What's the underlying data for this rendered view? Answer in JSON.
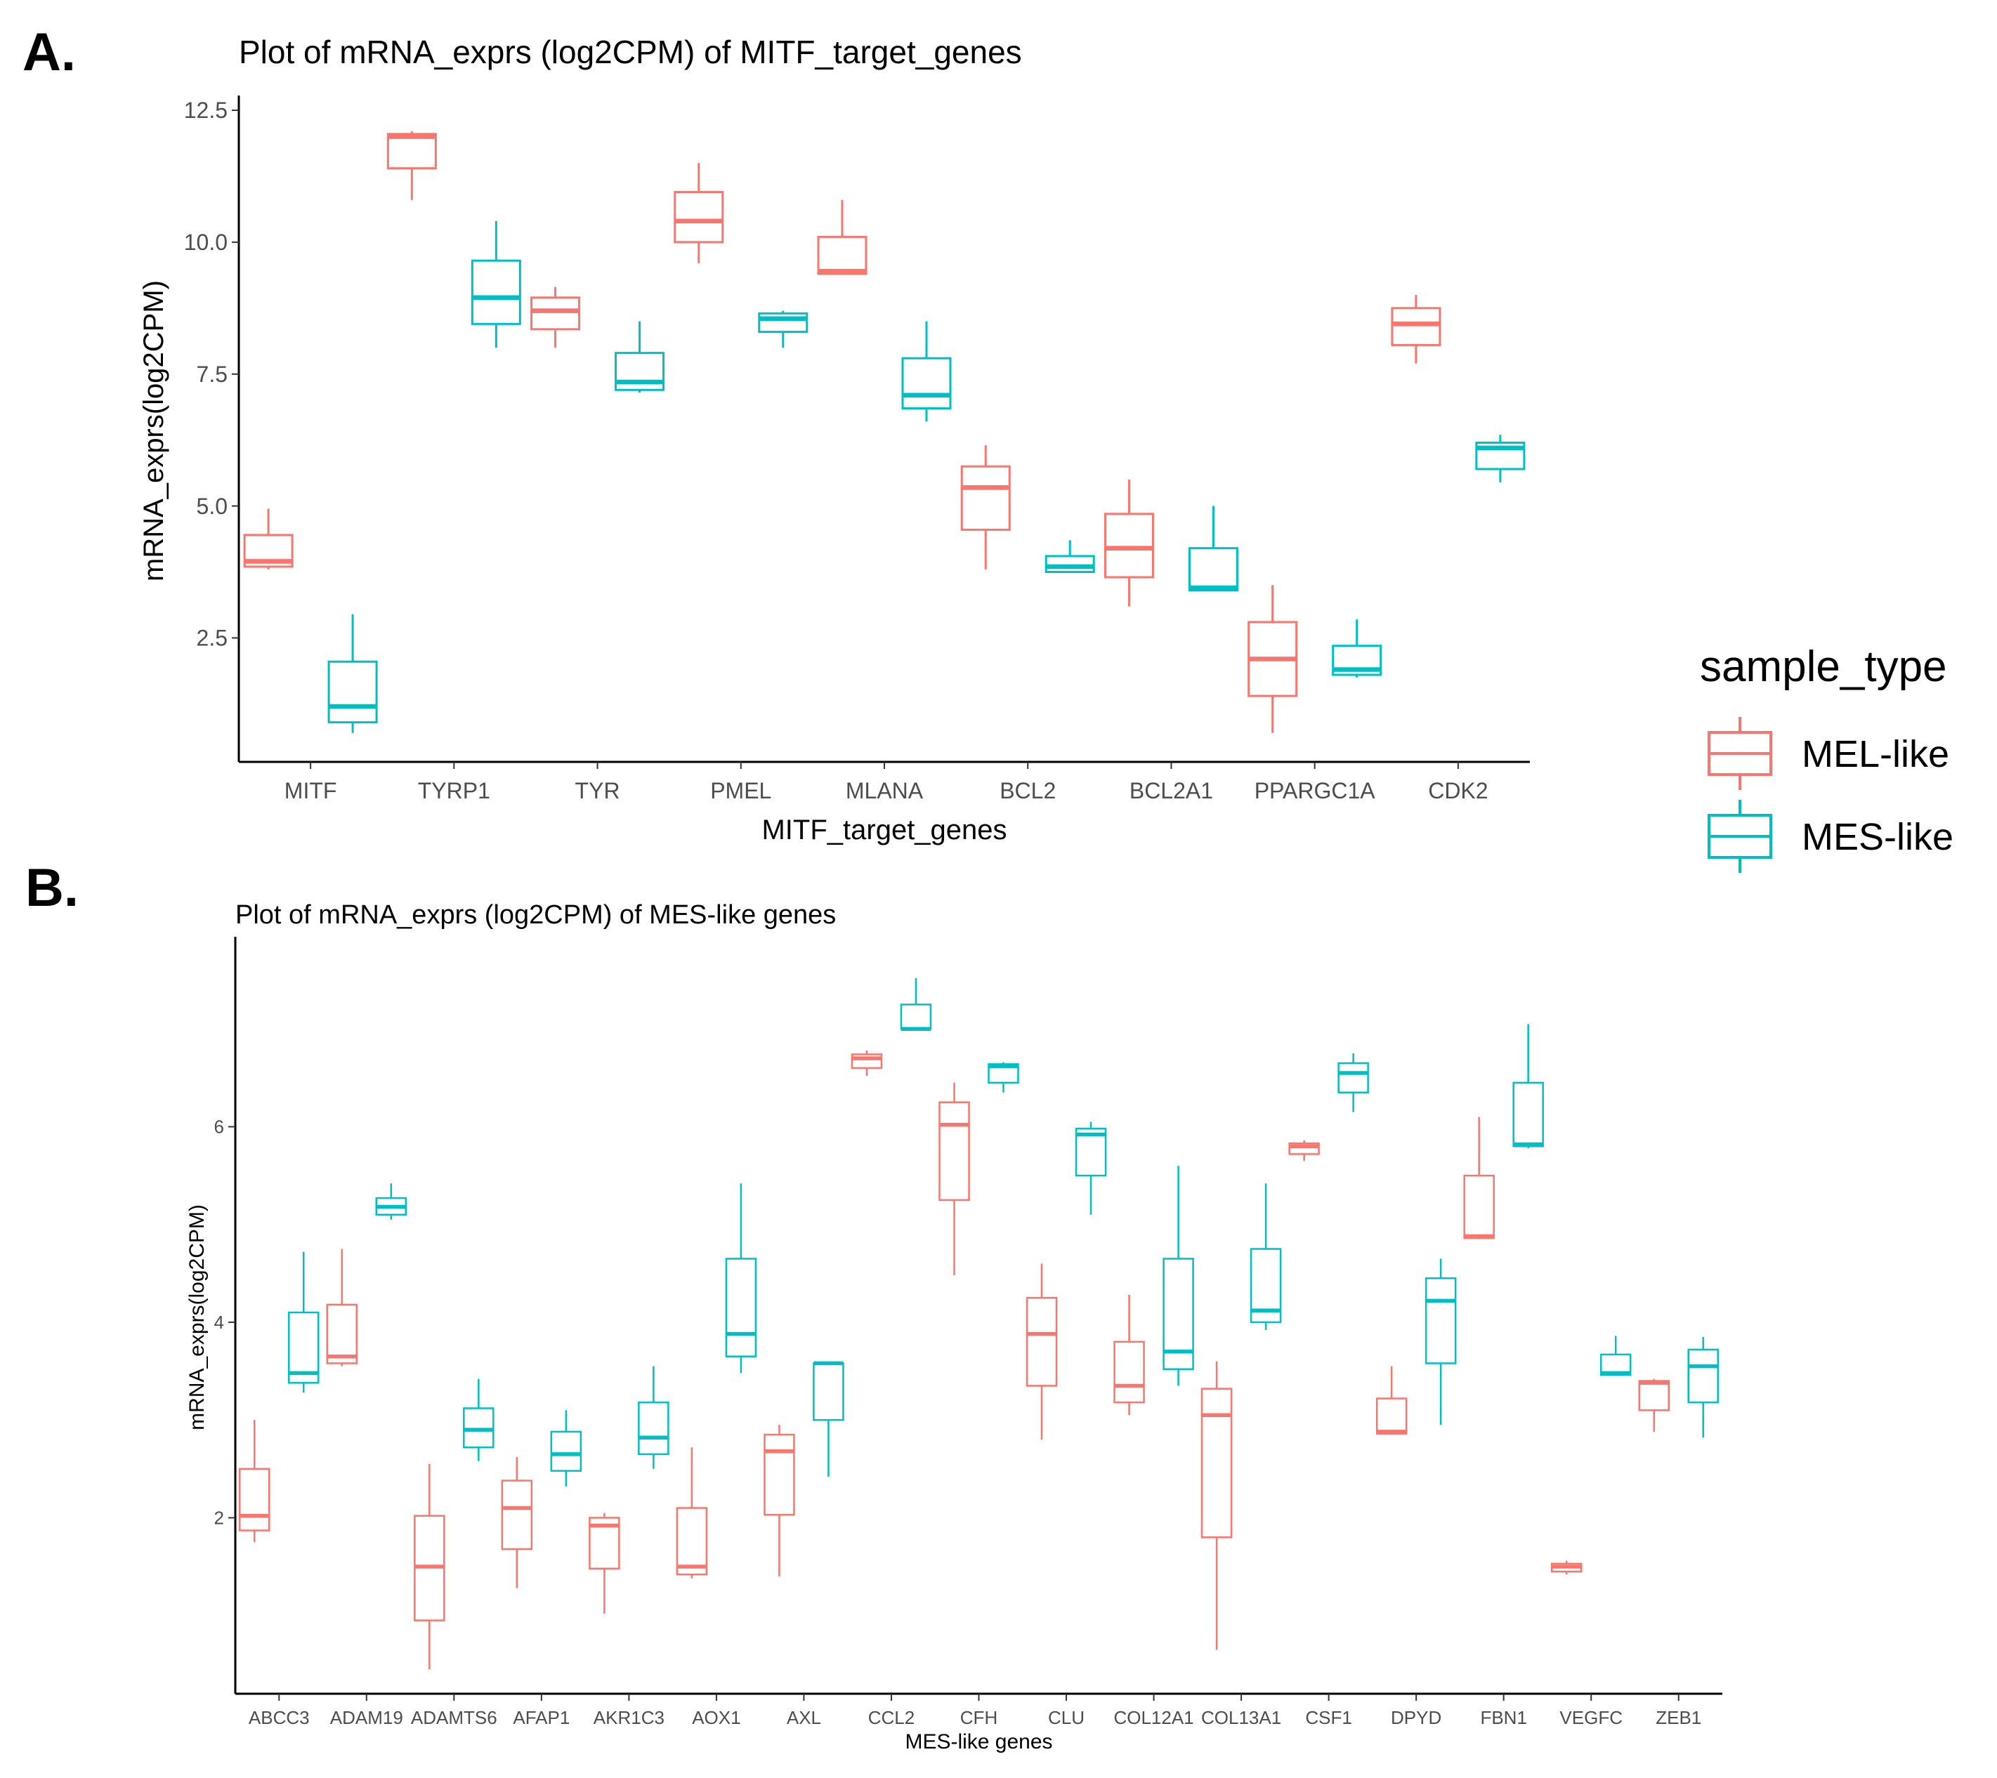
{
  "figure": {
    "legend": {
      "title": "sample_type",
      "entries": [
        {
          "label": "MEL-like",
          "color": "#F8766D"
        },
        {
          "label": "MES-like",
          "color": "#00BFC4"
        }
      ]
    },
    "panel_a_label": "A.",
    "panel_b_label": "B."
  },
  "chart_data": [
    {
      "type": "box",
      "title": "Plot of mRNA_exprs (log2CPM) of MITF_target_genes",
      "xlabel": "MITF_target_genes",
      "ylabel": "mRNA_exprs(log2CPM)",
      "ylim": [
        0.15,
        12.7
      ],
      "yticks": [
        2.5,
        5.0,
        7.5,
        10.0,
        12.5
      ],
      "ytick_labels": [
        "2.5",
        "5.0",
        "7.5",
        "10.0",
        "12.5"
      ],
      "categories": [
        "MITF",
        "TYRP1",
        "TYR",
        "PMEL",
        "MLANA",
        "BCL2",
        "BCL2A1",
        "PPARGC1A",
        "CDK2"
      ],
      "series": [
        {
          "name": "MEL-like",
          "color": "#F8766D",
          "boxes": [
            {
              "min": 3.8,
              "q1": 3.85,
              "median": 3.95,
              "q3": 4.45,
              "max": 4.95
            },
            {
              "min": 10.8,
              "q1": 11.4,
              "median": 12.0,
              "q3": 12.05,
              "max": 12.1
            },
            {
              "min": 8.0,
              "q1": 8.35,
              "median": 8.7,
              "q3": 8.95,
              "max": 9.15
            },
            {
              "min": 9.6,
              "q1": 10.0,
              "median": 10.4,
              "q3": 10.95,
              "max": 11.5
            },
            {
              "min": 9.4,
              "q1": 9.4,
              "median": 9.45,
              "q3": 10.1,
              "max": 10.8
            },
            {
              "min": 3.8,
              "q1": 4.55,
              "median": 5.35,
              "q3": 5.75,
              "max": 6.15
            },
            {
              "min": 3.1,
              "q1": 3.65,
              "median": 4.2,
              "q3": 4.85,
              "max": 5.5
            },
            {
              "min": 0.7,
              "q1": 1.4,
              "median": 2.1,
              "q3": 2.8,
              "max": 3.5
            },
            {
              "min": 7.7,
              "q1": 8.05,
              "median": 8.45,
              "q3": 8.75,
              "max": 9.0
            }
          ]
        },
        {
          "name": "MES-like",
          "color": "#00BFC4",
          "boxes": [
            {
              "min": 0.7,
              "q1": 0.9,
              "median": 1.2,
              "q3": 2.05,
              "max": 2.95
            },
            {
              "min": 8.0,
              "q1": 8.45,
              "median": 8.95,
              "q3": 9.65,
              "max": 10.4
            },
            {
              "min": 7.15,
              "q1": 7.2,
              "median": 7.35,
              "q3": 7.9,
              "max": 8.5
            },
            {
              "min": 8.0,
              "q1": 8.3,
              "median": 8.55,
              "q3": 8.65,
              "max": 8.7
            },
            {
              "min": 6.6,
              "q1": 6.85,
              "median": 7.1,
              "q3": 7.8,
              "max": 8.5
            },
            {
              "min": 3.75,
              "q1": 3.75,
              "median": 3.85,
              "q3": 4.05,
              "max": 4.35
            },
            {
              "min": 3.4,
              "q1": 3.4,
              "median": 3.45,
              "q3": 4.2,
              "max": 5.0
            },
            {
              "min": 1.75,
              "q1": 1.8,
              "median": 1.9,
              "q3": 2.35,
              "max": 2.85
            },
            {
              "min": 5.45,
              "q1": 5.7,
              "median": 6.1,
              "q3": 6.2,
              "max": 6.35
            }
          ]
        }
      ]
    },
    {
      "type": "box",
      "title": "Plot of mRNA_exprs (log2CPM) of MES-like genes",
      "xlabel": "MES-like genes",
      "ylabel": "mRNA_exprs(log2CPM)",
      "ylim": [
        0.2,
        7.9
      ],
      "yticks": [
        2,
        4,
        6
      ],
      "ytick_labels": [
        "2",
        "4",
        "6"
      ],
      "categories": [
        "ABCC3",
        "ADAM19",
        "ADAMTS6",
        "AFAP1",
        "AKR1C3",
        "AOX1",
        "AXL",
        "CCL2",
        "CFH",
        "CLU",
        "COL12A1",
        "COL13A1",
        "CSF1",
        "DPYD",
        "FBN1",
        "VEGFC",
        "ZEB1"
      ],
      "series": [
        {
          "name": "MEL-like",
          "color": "#F8766D",
          "boxes": [
            {
              "min": 1.75,
              "q1": 1.87,
              "median": 2.02,
              "q3": 2.5,
              "max": 3.0
            },
            {
              "min": 3.55,
              "q1": 3.58,
              "median": 3.65,
              "q3": 4.18,
              "max": 4.75
            },
            {
              "min": 0.45,
              "q1": 0.95,
              "median": 1.5,
              "q3": 2.02,
              "max": 2.55
            },
            {
              "min": 1.28,
              "q1": 1.68,
              "median": 2.1,
              "q3": 2.38,
              "max": 2.62
            },
            {
              "min": 1.02,
              "q1": 1.48,
              "median": 1.92,
              "q3": 2.0,
              "max": 2.05
            },
            {
              "min": 1.38,
              "q1": 1.42,
              "median": 1.5,
              "q3": 2.1,
              "max": 2.72
            },
            {
              "min": 1.4,
              "q1": 2.03,
              "median": 2.68,
              "q3": 2.85,
              "max": 2.95
            },
            {
              "min": 6.52,
              "q1": 6.6,
              "median": 6.7,
              "q3": 6.74,
              "max": 6.78
            },
            {
              "min": 4.48,
              "q1": 5.25,
              "median": 6.02,
              "q3": 6.25,
              "max": 6.45
            },
            {
              "min": 2.8,
              "q1": 3.35,
              "median": 3.88,
              "q3": 4.25,
              "max": 4.6
            },
            {
              "min": 3.05,
              "q1": 3.18,
              "median": 3.35,
              "q3": 3.8,
              "max": 4.28
            },
            {
              "min": 0.65,
              "q1": 1.8,
              "median": 3.05,
              "q3": 3.32,
              "max": 3.6
            },
            {
              "min": 5.65,
              "q1": 5.72,
              "median": 5.8,
              "q3": 5.83,
              "max": 5.86
            },
            {
              "min": 2.85,
              "q1": 2.86,
              "median": 2.88,
              "q3": 3.22,
              "max": 3.55
            },
            {
              "min": 4.85,
              "q1": 4.86,
              "median": 4.88,
              "q3": 5.5,
              "max": 6.1
            },
            {
              "min": 1.42,
              "q1": 1.45,
              "median": 1.5,
              "q3": 1.53,
              "max": 1.56
            },
            {
              "min": 2.88,
              "q1": 3.1,
              "median": 3.38,
              "q3": 3.4,
              "max": 3.42
            }
          ]
        },
        {
          "name": "MES-like",
          "color": "#00BFC4",
          "boxes": [
            {
              "min": 3.28,
              "q1": 3.38,
              "median": 3.48,
              "q3": 4.1,
              "max": 4.72
            },
            {
              "min": 5.05,
              "q1": 5.1,
              "median": 5.18,
              "q3": 5.27,
              "max": 5.42
            },
            {
              "min": 2.58,
              "q1": 2.72,
              "median": 2.9,
              "q3": 3.12,
              "max": 3.42
            },
            {
              "min": 2.32,
              "q1": 2.48,
              "median": 2.65,
              "q3": 2.88,
              "max": 3.1
            },
            {
              "min": 2.5,
              "q1": 2.65,
              "median": 2.82,
              "q3": 3.18,
              "max": 3.55
            },
            {
              "min": 3.48,
              "q1": 3.65,
              "median": 3.88,
              "q3": 4.65,
              "max": 5.42
            },
            {
              "min": 2.42,
              "q1": 3.0,
              "median": 3.58,
              "q3": 3.58,
              "max": 3.6
            },
            {
              "min": 6.98,
              "q1": 7.0,
              "median": 7.0,
              "q3": 7.25,
              "max": 7.52
            },
            {
              "min": 6.35,
              "q1": 6.45,
              "median": 6.62,
              "q3": 6.64,
              "max": 6.66
            },
            {
              "min": 5.1,
              "q1": 5.5,
              "median": 5.92,
              "q3": 5.98,
              "max": 6.05
            },
            {
              "min": 3.35,
              "q1": 3.52,
              "median": 3.7,
              "q3": 4.65,
              "max": 5.6
            },
            {
              "min": 3.92,
              "q1": 4.0,
              "median": 4.12,
              "q3": 4.75,
              "max": 5.42
            },
            {
              "min": 6.15,
              "q1": 6.35,
              "median": 6.55,
              "q3": 6.65,
              "max": 6.75
            },
            {
              "min": 2.95,
              "q1": 3.58,
              "median": 4.22,
              "q3": 4.45,
              "max": 4.65
            },
            {
              "min": 5.78,
              "q1": 5.8,
              "median": 5.82,
              "q3": 6.45,
              "max": 7.05
            },
            {
              "min": 3.45,
              "q1": 3.46,
              "median": 3.48,
              "q3": 3.67,
              "max": 3.86
            },
            {
              "min": 2.82,
              "q1": 3.18,
              "median": 3.55,
              "q3": 3.72,
              "max": 3.85
            }
          ]
        }
      ]
    }
  ]
}
